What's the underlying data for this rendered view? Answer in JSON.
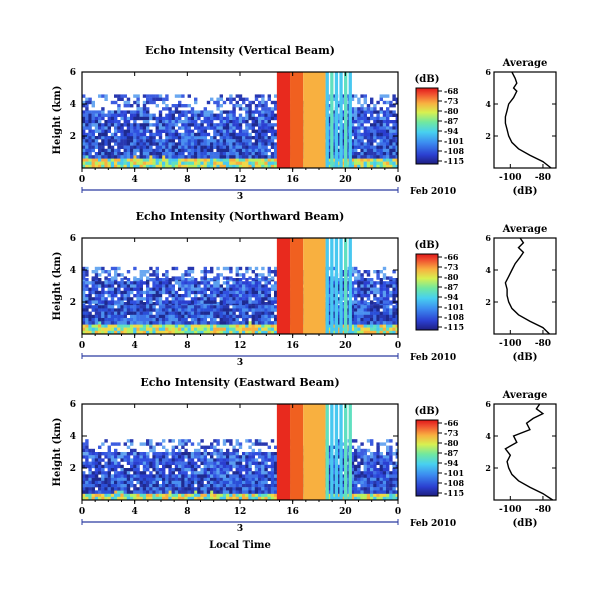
{
  "figure": {
    "xlabel": "Local Time",
    "date_label": "Feb 2010",
    "colorbar_unit": "(dB)",
    "average_title": "Average",
    "average_xlabel": "(dB)"
  },
  "chart_data": [
    {
      "type": "heatmap",
      "title": "Echo Intensity (Vertical Beam)",
      "ylabel": "Height (km)",
      "xlabel": "Local Time",
      "x_ticks": [
        "0",
        "4",
        "8",
        "12",
        "16",
        "20",
        "0"
      ],
      "x_day_label": "3",
      "xlim": [
        0,
        24
      ],
      "y_ticks": [
        "2",
        "4",
        "6"
      ],
      "ylim": [
        0,
        6
      ],
      "colorbar": {
        "label": "(dB)",
        "ticks": [
          "-68",
          "-73",
          "-80",
          "-87",
          "-94",
          "-101",
          "-108",
          "-115"
        ],
        "range": [
          -115,
          -68
        ]
      },
      "layers": [
        {
          "from": 0.0,
          "to": 0.8,
          "level": "strong-low"
        },
        {
          "from": 0.8,
          "to": 2.0,
          "level": "moderate"
        },
        {
          "from": 2.0,
          "to": 3.6,
          "level": "weak"
        },
        {
          "from": 3.6,
          "to": 4.6,
          "level": "sparse"
        }
      ],
      "rain_events": [
        {
          "start": 14.8,
          "end": 15.8,
          "top": 6.0
        },
        {
          "start": 15.8,
          "end": 16.8,
          "top": 6.0
        },
        {
          "start": 16.8,
          "end": 18.5,
          "top": 6.0
        }
      ],
      "average_profile": {
        "title": "Average",
        "xlabel": "(dB)",
        "x_ticks": [
          "-100",
          "-80"
        ],
        "xlim": [
          -110,
          -72
        ],
        "y_ticks": [
          "2",
          "4",
          "6"
        ],
        "ylim": [
          0,
          6
        ],
        "x": [
          -75,
          -80,
          -88,
          -95,
          -99,
          -101,
          -102,
          -103,
          -103,
          -102,
          -101,
          -98,
          -96,
          -98,
          -96,
          -97,
          -99
        ],
        "y": [
          0.0,
          0.4,
          0.8,
          1.2,
          1.6,
          2.0,
          2.4,
          2.8,
          3.2,
          3.6,
          4.0,
          4.4,
          4.8,
          5.0,
          5.3,
          5.6,
          6.0
        ]
      }
    },
    {
      "type": "heatmap",
      "title": "Echo Intensity (Northward Beam)",
      "ylabel": "Height (km)",
      "xlabel": "Local Time",
      "x_ticks": [
        "0",
        "4",
        "8",
        "12",
        "16",
        "20",
        "0"
      ],
      "x_day_label": "3",
      "xlim": [
        0,
        24
      ],
      "y_ticks": [
        "2",
        "4",
        "6"
      ],
      "ylim": [
        0,
        6
      ],
      "colorbar": {
        "label": "(dB)",
        "ticks": [
          "-66",
          "-73",
          "-80",
          "-87",
          "-94",
          "-101",
          "-108",
          "-115"
        ],
        "range": [
          -115,
          -66
        ]
      },
      "layers": [
        {
          "from": 0.0,
          "to": 0.8,
          "level": "strong-low"
        },
        {
          "from": 0.8,
          "to": 2.0,
          "level": "moderate"
        },
        {
          "from": 2.0,
          "to": 3.5,
          "level": "weak"
        },
        {
          "from": 3.5,
          "to": 4.2,
          "level": "sparse"
        }
      ],
      "rain_events": [
        {
          "start": 14.8,
          "end": 15.8,
          "top": 6.0
        },
        {
          "start": 15.8,
          "end": 16.8,
          "top": 6.0
        },
        {
          "start": 16.8,
          "end": 18.5,
          "top": 6.0
        }
      ],
      "average_profile": {
        "title": "Average",
        "xlabel": "(dB)",
        "x_ticks": [
          "-100",
          "-80"
        ],
        "xlim": [
          -110,
          -72
        ],
        "y_ticks": [
          "2",
          "4",
          "6"
        ],
        "ylim": [
          0,
          6
        ],
        "x": [
          -76,
          -80,
          -88,
          -95,
          -99,
          -101,
          -102,
          -102,
          -103,
          -101,
          -99,
          -97,
          -94,
          -92,
          -95,
          -92,
          -94
        ],
        "y": [
          0.0,
          0.4,
          0.8,
          1.2,
          1.6,
          2.0,
          2.4,
          2.8,
          3.2,
          3.6,
          4.0,
          4.4,
          4.8,
          5.1,
          5.4,
          5.7,
          6.0
        ]
      }
    },
    {
      "type": "heatmap",
      "title": "Echo Intensity (Eastward Beam)",
      "ylabel": "Height (km)",
      "xlabel": "Local Time",
      "x_ticks": [
        "0",
        "4",
        "8",
        "12",
        "16",
        "20",
        "0"
      ],
      "x_day_label": "3",
      "xlim": [
        0,
        24
      ],
      "y_ticks": [
        "2",
        "4",
        "6"
      ],
      "ylim": [
        0,
        6
      ],
      "colorbar": {
        "label": "(dB)",
        "ticks": [
          "-66",
          "-73",
          "-80",
          "-87",
          "-94",
          "-101",
          "-108",
          "-115"
        ],
        "range": [
          -115,
          -66
        ]
      },
      "layers": [
        {
          "from": 0.0,
          "to": 0.6,
          "level": "strong-low"
        },
        {
          "from": 0.6,
          "to": 1.6,
          "level": "moderate"
        },
        {
          "from": 1.6,
          "to": 3.0,
          "level": "weak"
        },
        {
          "from": 3.0,
          "to": 3.8,
          "level": "sparse"
        }
      ],
      "rain_events": [
        {
          "start": 14.8,
          "end": 15.8,
          "top": 6.0
        },
        {
          "start": 15.8,
          "end": 16.8,
          "top": 6.0
        },
        {
          "start": 16.8,
          "end": 18.5,
          "top": 6.0
        }
      ],
      "average_profile": {
        "title": "Average",
        "xlabel": "(dB)",
        "x_ticks": [
          "-100",
          "-80"
        ],
        "xlim": [
          -110,
          -72
        ],
        "y_ticks": [
          "2",
          "4",
          "6"
        ],
        "ylim": [
          0,
          6
        ],
        "x": [
          -74,
          -80,
          -88,
          -95,
          -99,
          -101,
          -102,
          -100,
          -103,
          -96,
          -98,
          -88,
          -90,
          -86,
          -80,
          -84,
          -82
        ],
        "y": [
          0.0,
          0.4,
          0.8,
          1.2,
          1.6,
          2.0,
          2.4,
          2.8,
          3.2,
          3.6,
          4.0,
          4.4,
          4.8,
          5.1,
          5.4,
          5.7,
          6.0
        ]
      }
    }
  ]
}
